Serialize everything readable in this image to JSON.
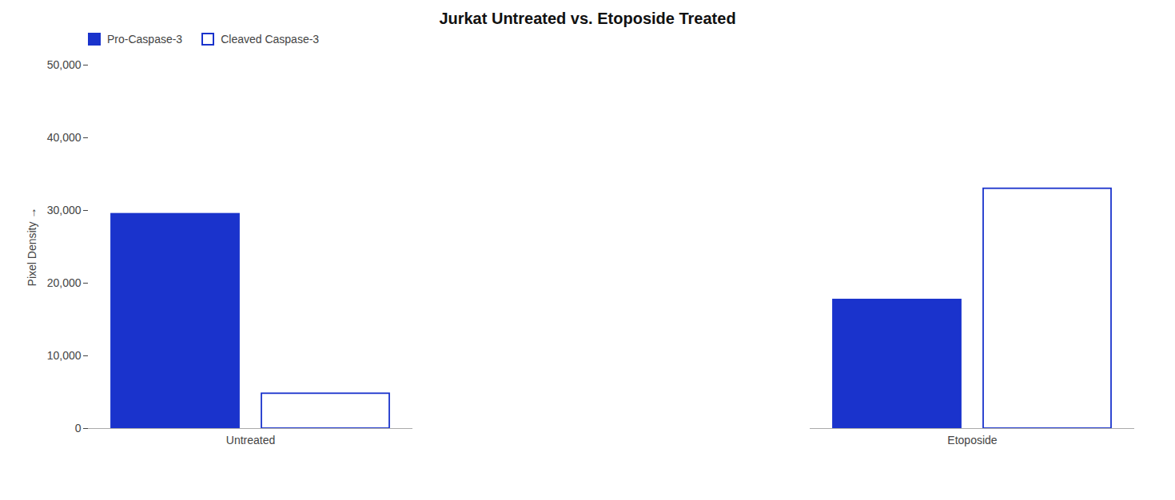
{
  "chart_data": {
    "type": "bar",
    "title": "Jurkat Untreated vs. Etoposide Treated",
    "ylabel": "Pixel Density",
    "categories": [
      "Untreated",
      "Etoposide"
    ],
    "series": [
      {
        "name": "Pro-Caspase-3",
        "color": "#1a33cc",
        "values": [
          29500,
          17700
        ]
      },
      {
        "name": "Cleaved Caspase-3",
        "color": "#1a33cc",
        "values": [
          4800,
          33000
        ]
      }
    ],
    "ylim": [
      0,
      50000
    ],
    "yticks": [
      0,
      {
        "value": 10000,
        "label": "10,000"
      },
      {
        "value": 20000,
        "label": "20,000"
      },
      {
        "value": 30000,
        "label": "30,000"
      },
      {
        "value": 40000,
        "label": "40,000"
      },
      {
        "value": 50000,
        "label": "50,000"
      }
    ],
    "grid": false,
    "legend": "upper left"
  }
}
